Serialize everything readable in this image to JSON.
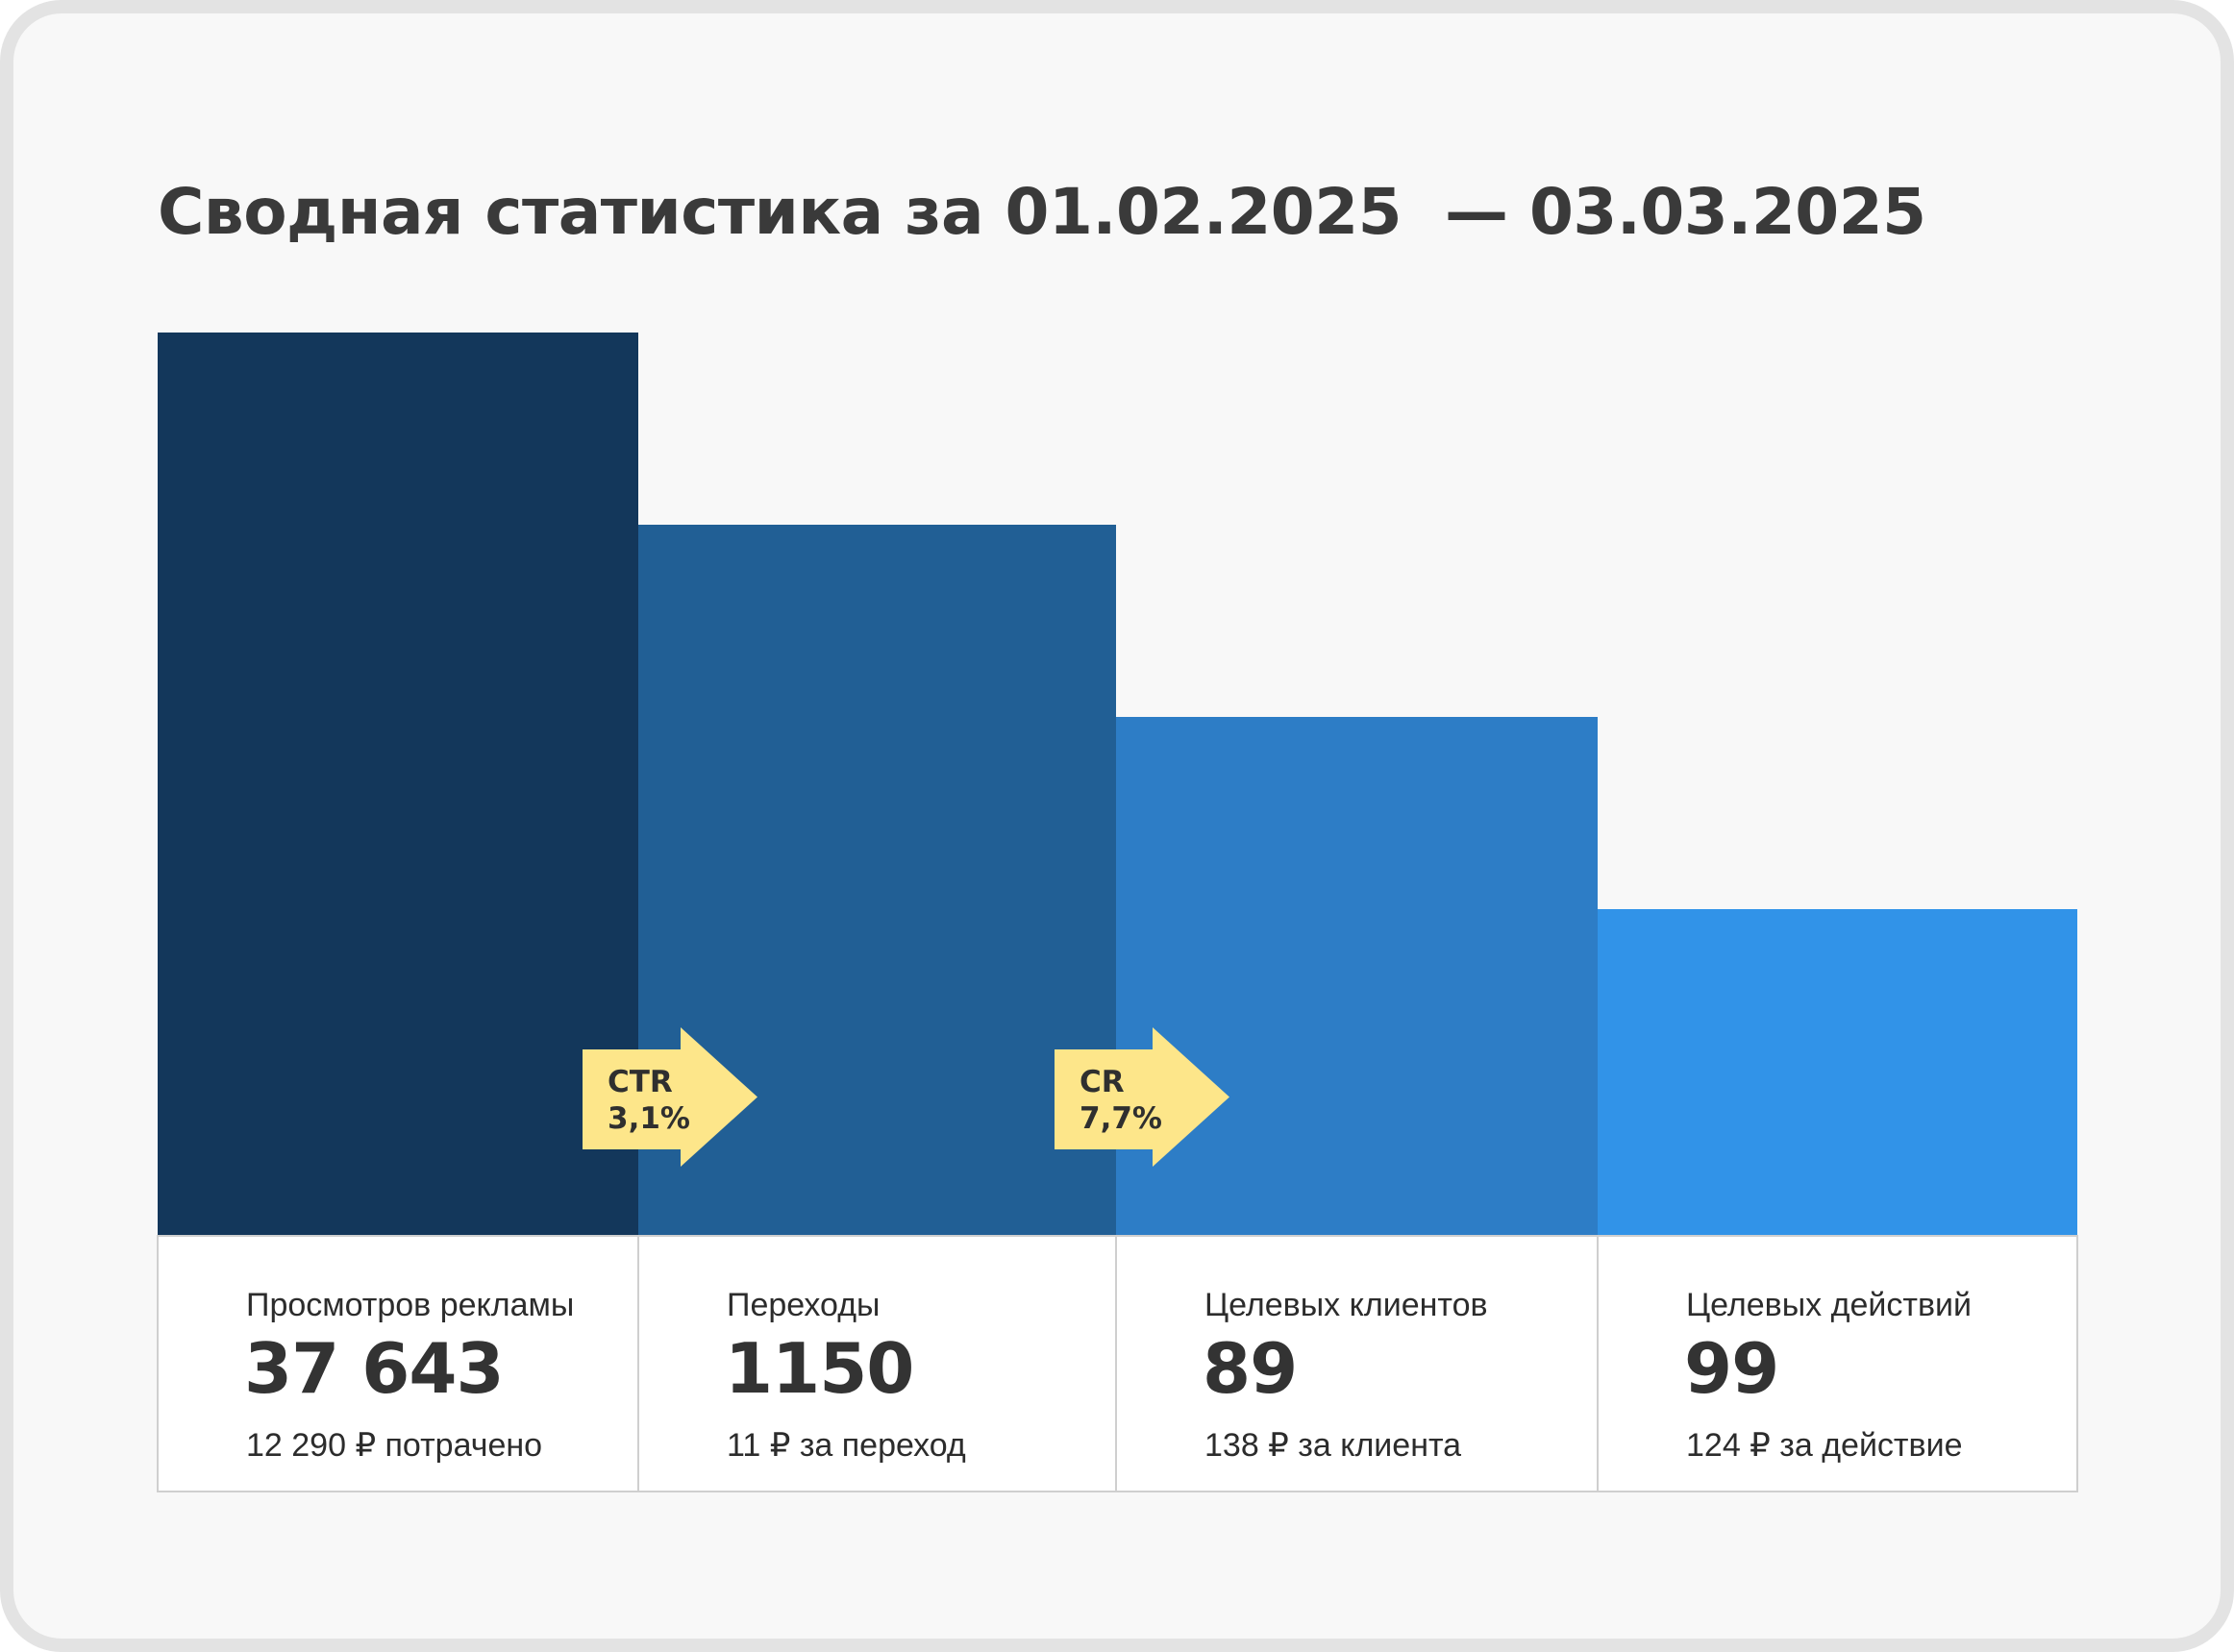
{
  "title": "Сводная статистика за 01.02.2025  — 03.03.2025",
  "colors": {
    "background": "#f8f8f8",
    "bars": [
      "#13375b",
      "#215f95",
      "#2d7dc6",
      "#3193e8"
    ],
    "arrow": "#fde68a",
    "table_border": "#cfcfcf"
  },
  "chart_data": {
    "type": "bar",
    "categories": [
      "Просмотров рекламы",
      "Переходы",
      "Целевых клиентов",
      "Целевых действий"
    ],
    "values": [
      37643,
      1150,
      89,
      99
    ],
    "displayed_values": [
      "37 643",
      "1150",
      "89",
      "99"
    ],
    "secondary": [
      "12 290 ₽ потрачено",
      "11 ₽ за переход",
      "138 ₽ за клиента",
      "124 ₽ за действие"
    ],
    "visual_style": "stepped funnel (bar heights decrease stepwise, not to scale)",
    "conversions": [
      {
        "label": "CTR",
        "value": "3,1%"
      },
      {
        "label": "CR",
        "value": "7,7%"
      }
    ]
  }
}
